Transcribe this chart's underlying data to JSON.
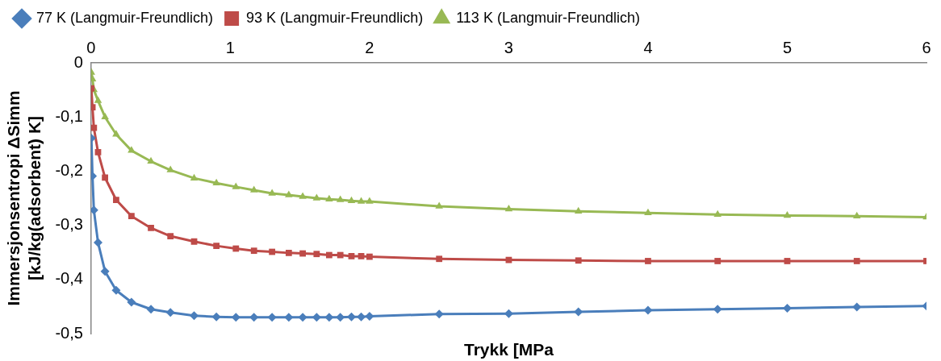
{
  "chart_data": {
    "type": "line",
    "xlabel": "Trykk [MPa",
    "ylabel": "Immersjonsentropi ΔSimm [kJ/kg(adsorbent) K]",
    "x": [
      0.002,
      0.01,
      0.02,
      0.05,
      0.1,
      0.18,
      0.29,
      0.43,
      0.57,
      0.74,
      0.9,
      1.04,
      1.17,
      1.3,
      1.42,
      1.52,
      1.62,
      1.71,
      1.79,
      1.87,
      1.94,
      2.0,
      2.5,
      3,
      3.5,
      4,
      4.5,
      5,
      5.5,
      6
    ],
    "xlim": [
      0,
      6
    ],
    "xticks": [
      0,
      1,
      2,
      3,
      4,
      5,
      6
    ],
    "ylim": [
      -0.5,
      0
    ],
    "yticks": [
      {
        "value": 0,
        "label": "0"
      },
      {
        "value": -0.1,
        "label": "-0,1"
      },
      {
        "value": -0.2,
        "label": "-0,2"
      },
      {
        "value": -0.3,
        "label": "-0,3"
      },
      {
        "value": -0.4,
        "label": "-0,4"
      },
      {
        "value": -0.5,
        "label": "-0,5"
      }
    ],
    "grid": false,
    "legend": "top left",
    "line_style": "solid",
    "series": [
      {
        "name": "77 K (Langmuir-Freundlich)",
        "color": "#4a7ebb",
        "marker": "diamond",
        "values": [
          -0.139,
          -0.209,
          -0.272,
          -0.332,
          -0.385,
          -0.42,
          -0.442,
          -0.455,
          -0.461,
          -0.467,
          -0.469,
          -0.47,
          -0.47,
          -0.47,
          -0.47,
          -0.47,
          -0.47,
          -0.47,
          -0.47,
          -0.469,
          -0.469,
          -0.468,
          -0.464,
          -0.463,
          -0.46,
          -0.457,
          -0.455,
          -0.453,
          -0.451,
          -0.449
        ]
      },
      {
        "name": "93 K (Langmuir-Freundlich)",
        "color": "#be4b48",
        "marker": "square",
        "values": [
          -0.047,
          -0.082,
          -0.12,
          -0.165,
          -0.212,
          -0.253,
          -0.283,
          -0.305,
          -0.32,
          -0.33,
          -0.338,
          -0.343,
          -0.347,
          -0.349,
          -0.351,
          -0.352,
          -0.353,
          -0.355,
          -0.355,
          -0.357,
          -0.357,
          -0.358,
          -0.362,
          -0.364,
          -0.365,
          -0.366,
          -0.366,
          -0.366,
          -0.366,
          -0.366
        ]
      },
      {
        "name": "113 K (Langmuir-Freundlich)",
        "color": "#98b954",
        "marker": "triangle",
        "values": [
          -0.018,
          -0.03,
          -0.05,
          -0.07,
          -0.1,
          -0.132,
          -0.162,
          -0.182,
          -0.198,
          -0.213,
          -0.222,
          -0.229,
          -0.235,
          -0.241,
          -0.244,
          -0.247,
          -0.25,
          -0.252,
          -0.253,
          -0.255,
          -0.256,
          -0.256,
          -0.265,
          -0.27,
          -0.274,
          -0.277,
          -0.28,
          -0.282,
          -0.283,
          -0.285
        ]
      }
    ]
  }
}
